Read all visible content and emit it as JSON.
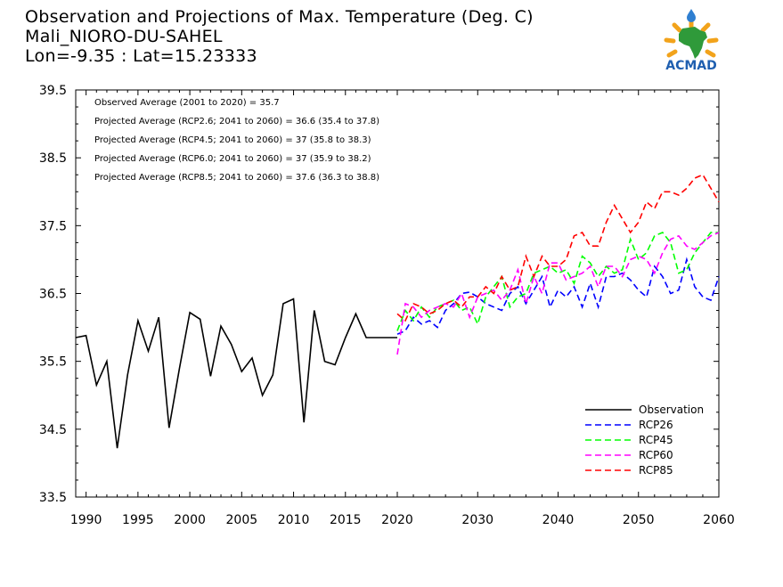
{
  "header": {
    "line1": "Observation and Projections of Max. Temperature (Deg. C)",
    "line2": "Mali_NIORO-DU-SAHEL",
    "line3": "Lon=-9.35 : Lat=15.23333"
  },
  "logo": {
    "text": "ACMAD"
  },
  "colors": {
    "Observation": "#000000",
    "RCP26": "#0000ff",
    "RCP45": "#00ff00",
    "RCP60": "#ff00ff",
    "RCP85": "#ff0000"
  },
  "chart_data": {
    "type": "line",
    "xlim": [
      1989,
      2060
    ],
    "ylim": [
      33.5,
      39.5
    ],
    "xticks": [
      1990,
      1995,
      2000,
      2005,
      2010,
      2015,
      2020,
      2030,
      2040,
      2050,
      2060
    ],
    "yticks": [
      33.5,
      34.5,
      35.5,
      36.5,
      37.5,
      38.5,
      39.5
    ],
    "annotations": [
      "Observed Average (2001 to 2020) = 35.7",
      "Projected Average (RCP2.6; 2041 to 2060) = 36.6 (35.4 to 37.8)",
      "Projected Average (RCP4.5; 2041 to 2060) = 37 (35.8 to 38.3)",
      "Projected Average (RCP6.0; 2041 to 2060) = 37 (35.9 to 38.2)",
      "Projected Average (RCP8.5; 2041 to 2060) = 37.6 (36.3 to 38.8)"
    ],
    "legend_position": "bottom-right",
    "series": [
      {
        "name": "Observation",
        "x": [
          1989,
          1990,
          1991,
          1992,
          1993,
          1994,
          1995,
          1996,
          1997,
          1998,
          1999,
          2000,
          2001,
          2002,
          2003,
          2004,
          2005,
          2006,
          2007,
          2008,
          2009,
          2010,
          2011,
          2012,
          2013,
          2014,
          2015,
          2016,
          2017,
          2018,
          2019,
          2020
        ],
        "values": [
          35.85,
          35.88,
          35.15,
          35.5,
          34.22,
          35.3,
          36.1,
          35.65,
          36.15,
          34.52,
          35.4,
          36.22,
          36.12,
          35.28,
          36.02,
          35.75,
          35.35,
          35.55,
          35.0,
          35.3,
          36.35,
          36.42,
          34.6,
          36.25,
          35.5,
          35.45,
          35.85,
          36.2,
          35.85,
          35.85,
          35.85,
          35.85
        ]
      },
      {
        "name": "RCP26",
        "x": [
          2020,
          2021,
          2022,
          2023,
          2024,
          2025,
          2026,
          2027,
          2028,
          2029,
          2030,
          2031,
          2032,
          2033,
          2034,
          2035,
          2036,
          2037,
          2038,
          2039,
          2040,
          2041,
          2042,
          2043,
          2044,
          2045,
          2046,
          2047,
          2048,
          2049,
          2050,
          2051,
          2052,
          2053,
          2054,
          2055,
          2056,
          2057,
          2058,
          2059,
          2060
        ],
        "values": [
          35.9,
          35.95,
          36.15,
          36.05,
          36.1,
          36.0,
          36.25,
          36.35,
          36.5,
          36.52,
          36.45,
          36.35,
          36.3,
          36.25,
          36.5,
          36.6,
          36.35,
          36.55,
          36.75,
          36.3,
          36.55,
          36.45,
          36.6,
          36.3,
          36.65,
          36.3,
          36.75,
          36.75,
          36.8,
          36.7,
          36.55,
          36.45,
          36.9,
          36.75,
          36.5,
          36.55,
          37.0,
          36.6,
          36.45,
          36.4,
          36.75
        ]
      },
      {
        "name": "RCP45",
        "x": [
          2020,
          2021,
          2022,
          2023,
          2024,
          2025,
          2026,
          2027,
          2028,
          2029,
          2030,
          2031,
          2032,
          2033,
          2034,
          2035,
          2036,
          2037,
          2038,
          2039,
          2040,
          2041,
          2042,
          2043,
          2044,
          2045,
          2046,
          2047,
          2048,
          2049,
          2050,
          2051,
          2052,
          2053,
          2054,
          2055,
          2056,
          2057,
          2058,
          2059,
          2060
        ],
        "values": [
          35.95,
          36.25,
          36.1,
          36.3,
          36.15,
          36.3,
          36.35,
          36.4,
          36.25,
          36.3,
          36.05,
          36.45,
          36.6,
          36.75,
          36.3,
          36.45,
          36.5,
          36.8,
          36.85,
          36.9,
          36.8,
          36.85,
          36.65,
          37.05,
          36.95,
          36.75,
          36.9,
          36.8,
          36.85,
          37.3,
          37.0,
          37.1,
          37.35,
          37.4,
          37.25,
          36.8,
          36.85,
          37.1,
          37.25,
          37.4,
          37.4
        ]
      },
      {
        "name": "RCP60",
        "x": [
          2020,
          2021,
          2022,
          2023,
          2024,
          2025,
          2026,
          2027,
          2028,
          2029,
          2030,
          2031,
          2032,
          2033,
          2034,
          2035,
          2036,
          2037,
          2038,
          2039,
          2040,
          2041,
          2042,
          2043,
          2044,
          2045,
          2046,
          2047,
          2048,
          2049,
          2050,
          2051,
          2052,
          2053,
          2054,
          2055,
          2056,
          2057,
          2058,
          2059,
          2060
        ],
        "values": [
          35.6,
          36.35,
          36.3,
          36.15,
          36.25,
          36.3,
          36.35,
          36.3,
          36.5,
          36.15,
          36.45,
          36.5,
          36.55,
          36.4,
          36.55,
          36.85,
          36.35,
          36.75,
          36.5,
          36.95,
          36.95,
          36.7,
          36.75,
          36.8,
          36.9,
          36.6,
          36.9,
          36.9,
          36.75,
          37.0,
          37.05,
          37.0,
          36.8,
          37.1,
          37.3,
          37.35,
          37.2,
          37.15,
          37.25,
          37.35,
          37.4
        ]
      },
      {
        "name": "RCP85",
        "x": [
          2020,
          2021,
          2022,
          2023,
          2024,
          2025,
          2026,
          2027,
          2028,
          2029,
          2030,
          2031,
          2032,
          2033,
          2034,
          2035,
          2036,
          2037,
          2038,
          2039,
          2040,
          2041,
          2042,
          2043,
          2044,
          2045,
          2046,
          2047,
          2048,
          2049,
          2050,
          2051,
          2052,
          2053,
          2054,
          2055,
          2056,
          2057,
          2058,
          2059,
          2060
        ],
        "values": [
          36.2,
          36.1,
          36.35,
          36.3,
          36.2,
          36.25,
          36.35,
          36.4,
          36.3,
          36.45,
          36.45,
          36.6,
          36.5,
          36.75,
          36.55,
          36.6,
          37.05,
          36.75,
          37.05,
          36.9,
          36.9,
          37.0,
          37.35,
          37.4,
          37.2,
          37.2,
          37.55,
          37.8,
          37.6,
          37.4,
          37.55,
          37.85,
          37.75,
          38.0,
          38.0,
          37.95,
          38.05,
          38.2,
          38.25,
          38.05,
          37.85
        ]
      }
    ]
  }
}
